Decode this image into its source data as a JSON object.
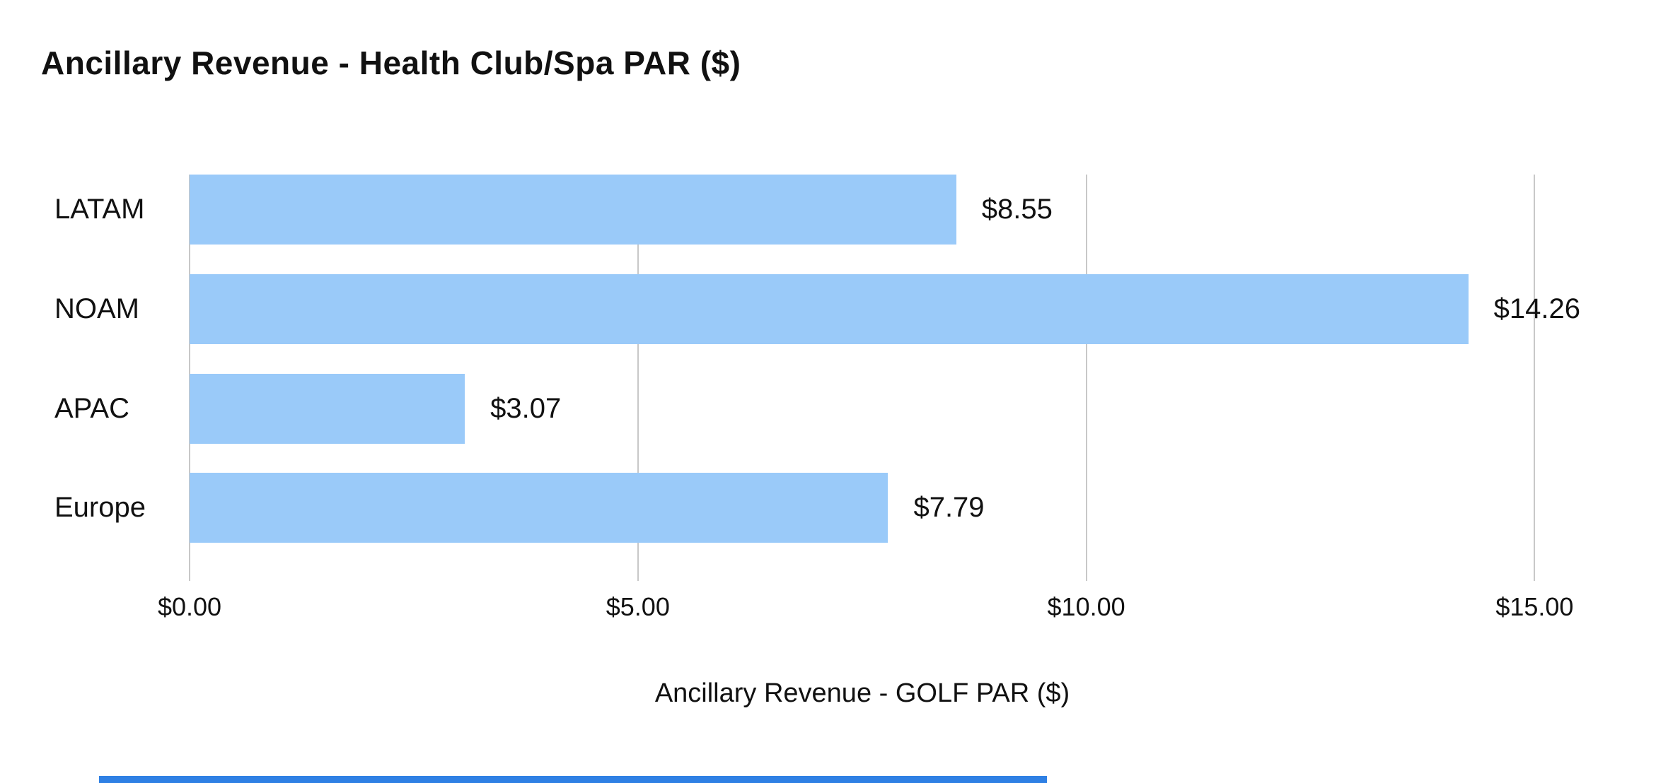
{
  "title": "Ancillary Revenue - Health Club/Spa PAR ($)",
  "chart_data": {
    "type": "bar",
    "orientation": "horizontal",
    "title": "Ancillary Revenue - Health Club/Spa PAR ($)",
    "xlabel": "Ancillary Revenue - GOLF PAR ($)",
    "ylabel": "",
    "categories": [
      "LATAM",
      "NOAM",
      "APAC",
      "Europe"
    ],
    "values": [
      8.55,
      14.26,
      3.07,
      7.79
    ],
    "value_labels": [
      "$8.55",
      "$14.26",
      "$3.07",
      "$7.79"
    ],
    "xlim": [
      0,
      15.95
    ],
    "xticks": [
      0,
      5,
      10,
      15
    ],
    "xtick_labels": [
      "$0.00",
      "$5.00",
      "$10.00",
      "$15.00"
    ],
    "grid": "vertical-gridlines",
    "legend_position": "none"
  },
  "colors": {
    "bar": "#9ACAF9",
    "gridline": "#c8c8c8",
    "text": "#111111",
    "background": "#ffffff",
    "bottom_partial_bar": "#2F80E4"
  }
}
